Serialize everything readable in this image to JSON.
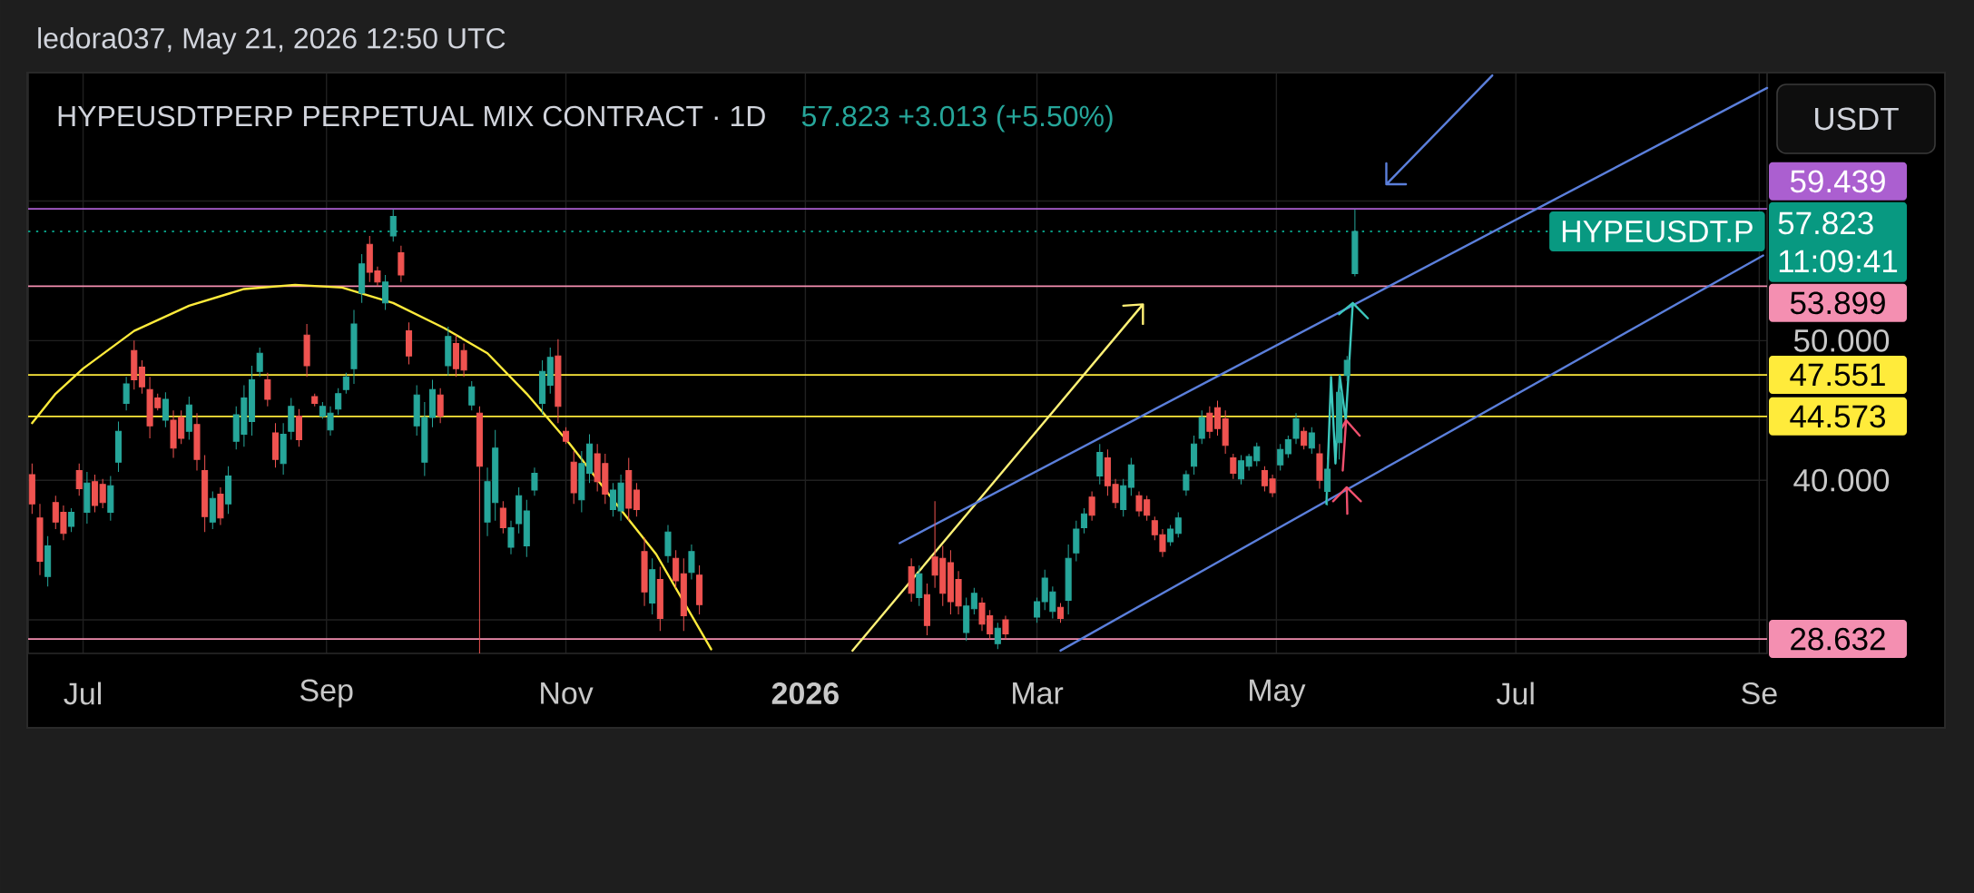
{
  "chart_data": {
    "type": "candlestick",
    "title": "HYPEUSDTPERP PERPETUAL MIX CONTRACT · 1D",
    "subtitle": "57.823 +3.013 (+5.50%)",
    "ylabel": "USDT",
    "annotations": [
      "ledora037, May 21, 2026 12:50 UTC",
      "HYPEUSDT.P",
      "11:09:41"
    ],
    "x": [
      "2025-06-18",
      "2025-06-20",
      "2025-06-22",
      "2025-06-24",
      "2025-06-26",
      "2025-06-28",
      "2025-06-30",
      "2025-07-02",
      "2025-07-04",
      "2025-07-06",
      "2025-07-08",
      "2025-07-10",
      "2025-07-12",
      "2025-07-14",
      "2025-07-16",
      "2025-07-18",
      "2025-07-20",
      "2025-07-22",
      "2025-07-24",
      "2025-07-26",
      "2025-07-28",
      "2025-07-30",
      "2025-08-01",
      "2025-08-03",
      "2025-08-05",
      "2025-08-07",
      "2025-08-09",
      "2025-08-11",
      "2025-08-13",
      "2025-08-15",
      "2025-08-17",
      "2025-08-19",
      "2025-08-21",
      "2025-08-23",
      "2025-08-25",
      "2025-08-27",
      "2025-08-29",
      "2025-08-31",
      "2025-09-02",
      "2025-09-04",
      "2025-09-06",
      "2025-09-08",
      "2025-09-10",
      "2025-09-12",
      "2025-09-14",
      "2025-09-16",
      "2025-09-18",
      "2025-09-20",
      "2025-09-22",
      "2025-09-24",
      "2025-09-26",
      "2025-09-28",
      "2025-09-30",
      "2025-10-02",
      "2025-10-04",
      "2025-10-06",
      "2025-10-08",
      "2025-10-10",
      "2025-10-12",
      "2025-10-14",
      "2025-10-16",
      "2025-10-18",
      "2025-10-20",
      "2025-10-22",
      "2025-10-24",
      "2025-10-26",
      "2025-10-28",
      "2025-10-30",
      "2025-11-01",
      "2025-11-03",
      "2025-11-05",
      "2025-11-07",
      "2025-11-09",
      "2025-11-11",
      "2025-11-13",
      "2025-11-15",
      "2025-11-17",
      "2025-11-19",
      "2025-11-21",
      "2025-11-23",
      "2025-11-25",
      "2025-11-27",
      "2025-11-29",
      "2025-12-01",
      "2025-12-03",
      "2025-12-05",
      "2026-01-28",
      "2026-01-30",
      "2026-02-01",
      "2026-02-03",
      "2026-02-05",
      "2026-02-07",
      "2026-02-09",
      "2026-02-11",
      "2026-02-13",
      "2026-02-15",
      "2026-02-17",
      "2026-02-19",
      "2026-02-21",
      "2026-03-01",
      "2026-03-03",
      "2026-03-05",
      "2026-03-07",
      "2026-03-09",
      "2026-03-11",
      "2026-03-13",
      "2026-03-15",
      "2026-03-17",
      "2026-03-19",
      "2026-03-21",
      "2026-03-23",
      "2026-03-25",
      "2026-03-27",
      "2026-03-29",
      "2026-03-31",
      "2026-04-02",
      "2026-04-04",
      "2026-04-06",
      "2026-04-08",
      "2026-04-10",
      "2026-04-12",
      "2026-04-14",
      "2026-04-16",
      "2026-04-18",
      "2026-04-20",
      "2026-04-22",
      "2026-04-24",
      "2026-04-26",
      "2026-04-28",
      "2026-04-30",
      "2026-05-02",
      "2026-05-04",
      "2026-05-06",
      "2026-05-08",
      "2026-05-10",
      "2026-05-12",
      "2026-05-14",
      "2026-05-17",
      "2026-05-19",
      "2026-05-21"
    ],
    "ohlc": [
      [
        40.4,
        41.2,
        37.6,
        38.3
      ],
      [
        37.3,
        38.3,
        33.2,
        34.2
      ],
      [
        33.1,
        36.0,
        32.4,
        35.3
      ],
      [
        38.4,
        38.9,
        36.5,
        37.0
      ],
      [
        37.7,
        38.2,
        35.7,
        36.2
      ],
      [
        36.7,
        38.0,
        36.3,
        37.7
      ],
      [
        40.7,
        41.2,
        38.9,
        39.4
      ],
      [
        37.7,
        40.6,
        36.9,
        39.8
      ],
      [
        39.9,
        40.4,
        37.7,
        38.2
      ],
      [
        39.7,
        40.1,
        38.0,
        38.4
      ],
      [
        37.7,
        40.3,
        37.1,
        39.6
      ],
      [
        41.3,
        44.2,
        40.6,
        43.5
      ],
      [
        45.5,
        47.4,
        45.0,
        46.9
      ],
      [
        49.3,
        50.0,
        46.5,
        47.2
      ],
      [
        48.1,
        48.6,
        46.2,
        46.7
      ],
      [
        46.5,
        47.4,
        43.0,
        43.9
      ],
      [
        45.9,
        46.2,
        45.0,
        45.2
      ],
      [
        44.3,
        46.3,
        43.8,
        45.8
      ],
      [
        44.3,
        45.0,
        41.6,
        42.3
      ],
      [
        44.5,
        45.0,
        42.6,
        43.0
      ],
      [
        43.5,
        46.0,
        42.9,
        45.4
      ],
      [
        44.0,
        44.8,
        40.7,
        41.5
      ],
      [
        40.7,
        41.8,
        36.3,
        37.4
      ],
      [
        37.0,
        39.2,
        36.5,
        38.7
      ],
      [
        39.0,
        39.5,
        36.8,
        37.3
      ],
      [
        38.3,
        41.0,
        37.6,
        40.3
      ],
      [
        42.8,
        45.3,
        42.2,
        44.7
      ],
      [
        43.3,
        46.8,
        42.4,
        45.9
      ],
      [
        44.2,
        48.2,
        43.2,
        47.2
      ],
      [
        47.8,
        49.5,
        47.4,
        49.1
      ],
      [
        47.2,
        47.7,
        45.3,
        45.8
      ],
      [
        43.4,
        44.1,
        40.9,
        41.5
      ],
      [
        41.2,
        44.1,
        40.4,
        43.3
      ],
      [
        43.5,
        45.9,
        42.9,
        45.3
      ],
      [
        44.6,
        45.1,
        42.4,
        42.9
      ],
      [
        50.4,
        51.2,
        47.4,
        48.2
      ],
      [
        46.0,
        46.2,
        45.3,
        45.5
      ],
      [
        44.6,
        45.6,
        44.4,
        45.3
      ],
      [
        43.6,
        45.3,
        43.2,
        44.8
      ],
      [
        45.1,
        46.6,
        44.7,
        46.2
      ],
      [
        46.5,
        47.7,
        46.2,
        47.4
      ],
      [
        48.0,
        52.2,
        46.9,
        51.2
      ],
      [
        53.4,
        56.2,
        52.7,
        55.5
      ],
      [
        56.9,
        57.5,
        54.2,
        54.9
      ],
      [
        55.0,
        55.3,
        53.9,
        54.2
      ],
      [
        52.7,
        54.7,
        52.2,
        54.2
      ],
      [
        57.5,
        59.4,
        57.1,
        58.9
      ],
      [
        56.3,
        56.8,
        54.2,
        54.7
      ],
      [
        50.7,
        51.3,
        48.3,
        48.9
      ],
      [
        43.9,
        46.8,
        43.2,
        46.1
      ],
      [
        41.3,
        45.6,
        40.3,
        44.5
      ],
      [
        44.5,
        47.2,
        43.8,
        46.5
      ],
      [
        46.1,
        46.6,
        44.1,
        44.6
      ],
      [
        48.2,
        51.0,
        47.5,
        50.3
      ],
      [
        49.8,
        50.4,
        47.4,
        48.0
      ],
      [
        49.3,
        49.8,
        47.4,
        47.9
      ],
      [
        45.4,
        47.1,
        45.0,
        46.7
      ],
      [
        44.8,
        45.3,
        27.6,
        41.0
      ],
      [
        37.0,
        40.9,
        36.0,
        39.9
      ],
      [
        38.4,
        43.6,
        37.1,
        42.3
      ],
      [
        38.0,
        38.5,
        36.2,
        36.6
      ],
      [
        35.2,
        37.1,
        34.7,
        36.6
      ],
      [
        36.9,
        39.5,
        36.2,
        38.9
      ],
      [
        35.3,
        38.6,
        34.5,
        37.8
      ],
      [
        39.3,
        40.9,
        38.9,
        40.5
      ],
      [
        45.5,
        48.6,
        44.7,
        47.8
      ],
      [
        46.8,
        49.5,
        46.2,
        48.8
      ],
      [
        48.9,
        50.1,
        44.1,
        45.3
      ],
      [
        43.5,
        43.8,
        42.6,
        42.8
      ],
      [
        41.3,
        42.1,
        38.3,
        39.1
      ],
      [
        38.6,
        42.1,
        37.7,
        41.2
      ],
      [
        40.5,
        43.3,
        39.8,
        42.6
      ],
      [
        41.9,
        42.6,
        39.2,
        39.9
      ],
      [
        41.2,
        41.9,
        38.3,
        39.0
      ],
      [
        37.9,
        39.8,
        37.4,
        39.3
      ],
      [
        37.8,
        40.4,
        37.1,
        39.8
      ],
      [
        40.7,
        41.6,
        37.1,
        38.0
      ],
      [
        39.3,
        39.8,
        37.4,
        37.9
      ],
      [
        34.9,
        35.9,
        31.0,
        32.0
      ],
      [
        31.2,
        34.4,
        30.4,
        33.6
      ],
      [
        32.9,
        33.8,
        29.2,
        30.1
      ],
      [
        34.6,
        36.8,
        34.1,
        36.3
      ],
      [
        34.4,
        35.0,
        32.3,
        32.8
      ],
      [
        33.3,
        34.4,
        29.2,
        30.3
      ],
      [
        33.4,
        35.4,
        32.9,
        34.9
      ],
      [
        33.2,
        33.9,
        30.4,
        31.1
      ],
      [
        33.8,
        34.4,
        31.3,
        31.9
      ],
      [
        31.6,
        33.9,
        31.0,
        33.3
      ],
      [
        31.8,
        32.6,
        28.9,
        29.6
      ],
      [
        34.5,
        38.5,
        32.3,
        33.2
      ],
      [
        34.4,
        35.3,
        31.0,
        31.9
      ],
      [
        34.1,
        35.0,
        30.4,
        31.3
      ],
      [
        32.9,
        33.5,
        30.4,
        31.0
      ],
      [
        29.1,
        31.6,
        28.5,
        31.0
      ],
      [
        30.8,
        32.3,
        30.4,
        31.9
      ],
      [
        31.2,
        31.6,
        29.2,
        29.7
      ],
      [
        30.3,
        30.7,
        28.6,
        29.0
      ],
      [
        28.3,
        29.8,
        27.9,
        29.4
      ],
      [
        30.0,
        30.3,
        28.6,
        29.0
      ],
      [
        30.2,
        31.6,
        29.8,
        31.3
      ],
      [
        31.3,
        33.6,
        30.7,
        33.0
      ],
      [
        30.6,
        32.4,
        30.1,
        32.0
      ],
      [
        30.9,
        31.2,
        29.8,
        30.1
      ],
      [
        31.4,
        35.4,
        30.4,
        34.4
      ],
      [
        34.8,
        37.1,
        34.2,
        36.5
      ],
      [
        36.6,
        38.0,
        36.2,
        37.6
      ],
      [
        38.8,
        39.2,
        37.1,
        37.5
      ],
      [
        40.3,
        42.6,
        39.7,
        42.0
      ],
      [
        41.6,
        42.2,
        38.9,
        39.6
      ],
      [
        39.7,
        40.1,
        38.0,
        38.4
      ],
      [
        37.9,
        40.1,
        37.4,
        39.6
      ],
      [
        39.5,
        41.6,
        38.9,
        41.1
      ],
      [
        38.9,
        39.2,
        37.4,
        37.8
      ],
      [
        38.6,
        38.9,
        37.1,
        37.5
      ],
      [
        37.1,
        37.4,
        35.7,
        36.1
      ],
      [
        36.1,
        36.5,
        34.5,
        34.9
      ],
      [
        35.6,
        36.8,
        35.3,
        36.5
      ],
      [
        36.2,
        37.7,
        35.9,
        37.3
      ],
      [
        39.3,
        40.7,
        38.9,
        40.4
      ],
      [
        41.0,
        43.2,
        40.4,
        42.6
      ],
      [
        43.0,
        45.0,
        42.6,
        44.5
      ],
      [
        44.8,
        45.3,
        43.0,
        43.5
      ],
      [
        45.2,
        45.7,
        43.2,
        43.7
      ],
      [
        44.4,
        45.0,
        41.9,
        42.5
      ],
      [
        41.6,
        41.9,
        40.1,
        40.5
      ],
      [
        40.1,
        41.8,
        39.7,
        41.4
      ],
      [
        41.0,
        41.9,
        40.7,
        41.7
      ],
      [
        41.4,
        42.7,
        41.0,
        42.4
      ],
      [
        40.7,
        41.0,
        39.2,
        39.6
      ],
      [
        40.1,
        40.4,
        38.8,
        39.1
      ],
      [
        41.1,
        42.6,
        40.7,
        42.2
      ],
      [
        41.9,
        43.2,
        41.6,
        42.9
      ],
      [
        43.0,
        44.8,
        42.6,
        44.4
      ],
      [
        43.5,
        43.8,
        42.2,
        42.5
      ],
      [
        42.3,
        43.8,
        41.9,
        43.4
      ],
      [
        41.9,
        42.6,
        39.4,
        40.0
      ],
      [
        39.2,
        41.5,
        38.2,
        40.8
      ],
      [
        42.7,
        47.5,
        41.5,
        46.3
      ],
      [
        47.5,
        48.9,
        47.1,
        48.6
      ],
      [
        54.8,
        59.4,
        54.6,
        57.823
      ]
    ],
    "colors": [
      "#ef5350",
      "#ef5350",
      "#26a69a",
      "#ef5350",
      "#ef5350",
      "#26a69a",
      "#ef5350",
      "#26a69a",
      "#ef5350",
      "#ef5350",
      "#26a69a",
      "#26a69a",
      "#26a69a",
      "#ef5350",
      "#ef5350",
      "#ef5350",
      "#ef5350",
      "#26a69a",
      "#ef5350",
      "#ef5350",
      "#26a69a",
      "#ef5350",
      "#ef5350",
      "#26a69a",
      "#ef5350",
      "#26a69a",
      "#26a69a",
      "#26a69a",
      "#26a69a",
      "#26a69a",
      "#ef5350",
      "#ef5350",
      "#26a69a",
      "#26a69a",
      "#ef5350",
      "#ef5350",
      "#ef5350",
      "#26a69a",
      "#26a69a",
      "#26a69a",
      "#26a69a",
      "#26a69a",
      "#26a69a",
      "#ef5350",
      "#ef5350",
      "#26a69a",
      "#26a69a",
      "#ef5350",
      "#ef5350",
      "#26a69a",
      "#26a69a",
      "#26a69a",
      "#ef5350",
      "#26a69a",
      "#ef5350",
      "#ef5350",
      "#26a69a",
      "#ef5350",
      "#26a69a",
      "#26a69a",
      "#ef5350",
      "#26a69a",
      "#26a69a",
      "#26a69a",
      "#26a69a",
      "#26a69a",
      "#26a69a",
      "#ef5350",
      "#ef5350",
      "#ef5350",
      "#26a69a",
      "#26a69a",
      "#ef5350",
      "#ef5350",
      "#26a69a",
      "#26a69a",
      "#ef5350",
      "#ef5350",
      "#ef5350",
      "#26a69a",
      "#ef5350",
      "#26a69a",
      "#ef5350",
      "#ef5350",
      "#26a69a",
      "#ef5350",
      "#ef5350",
      "#26a69a",
      "#ef5350",
      "#ef5350",
      "#ef5350",
      "#ef5350",
      "#ef5350",
      "#26a69a",
      "#26a69a",
      "#ef5350",
      "#ef5350",
      "#26a69a",
      "#ef5350",
      "#26a69a",
      "#26a69a",
      "#26a69a",
      "#ef5350",
      "#26a69a",
      "#26a69a",
      "#26a69a",
      "#ef5350",
      "#26a69a",
      "#ef5350",
      "#ef5350",
      "#26a69a",
      "#26a69a",
      "#ef5350",
      "#ef5350",
      "#ef5350",
      "#ef5350",
      "#26a69a",
      "#26a69a",
      "#26a69a",
      "#26a69a",
      "#26a69a",
      "#ef5350",
      "#ef5350",
      "#ef5350",
      "#ef5350",
      "#26a69a",
      "#26a69a",
      "#26a69a",
      "#ef5350",
      "#ef5350",
      "#26a69a",
      "#26a69a",
      "#26a69a",
      "#ef5350",
      "#26a69a",
      "#ef5350",
      "#26a69a",
      "#26a69a",
      "#26a69a",
      "#26a69a"
    ],
    "xlim": [
      "2025-06-17",
      "2026-09-03"
    ],
    "xticks": [
      {
        "value": "2025-07-01",
        "label": "Jul"
      },
      {
        "value": "2025-09-01",
        "label": "Sep"
      },
      {
        "value": "2025-11-01",
        "label": "Nov"
      },
      {
        "value": "2026-01-01",
        "label": "2026"
      },
      {
        "value": "2026-03-01",
        "label": "Mar"
      },
      {
        "value": "2026-05-01",
        "label": "May"
      },
      {
        "value": "2026-07-01",
        "label": "Jul"
      },
      {
        "value": "2026-09-01",
        "label": "Se"
      }
    ],
    "ylim": [
      27.6,
      69.2
    ],
    "yticks": [
      {
        "value": 30,
        "label": null
      },
      {
        "value": 40,
        "label": "40.000"
      },
      {
        "value": 50,
        "label": "50.000"
      },
      {
        "value": 60,
        "label": null
      }
    ],
    "grid": true,
    "ref_lines": [
      {
        "axis": "y",
        "value": 59.439,
        "label": "59.439",
        "color": "#ab5fd0"
      },
      {
        "axis": "y",
        "value": 57.823,
        "label": "57.823",
        "color": "#089981",
        "line_style": "dotted"
      },
      {
        "axis": "y",
        "value": 53.899,
        "label": "53.899",
        "color": "#f48fb1"
      },
      {
        "axis": "y",
        "value": 47.551,
        "label": "47.551",
        "color": "#ffeb3b"
      },
      {
        "axis": "y",
        "value": 44.573,
        "label": "44.573",
        "color": "#ffeb3b"
      },
      {
        "axis": "y",
        "value": 28.632,
        "label": "28.632",
        "color": "#f48fb1"
      }
    ],
    "series": [
      {
        "type": "line",
        "color": "#ffeb3b",
        "x": [
          "2025-06-18",
          "2025-06-24",
          "2025-07-01",
          "2025-07-14",
          "2025-07-28",
          "2025-08-11",
          "2025-08-24",
          "2025-09-05",
          "2025-09-18",
          "2025-10-01",
          "2025-10-12",
          "2025-10-22",
          "2025-11-02",
          "2025-11-13",
          "2025-11-24",
          "2025-12-08"
        ],
        "values": [
          44.1,
          46.2,
          48.0,
          50.7,
          52.5,
          53.7,
          54.0,
          53.8,
          52.7,
          50.9,
          49.1,
          46.2,
          42.6,
          38.6,
          34.7,
          27.9
        ]
      },
      {
        "type": "line",
        "color": "#fff176",
        "x": [
          "2026-01-13",
          "2026-03-28",
          "2026-03-23",
          "2026-03-28",
          "2026-03-28"
        ],
        "values": [
          27.8,
          52.6,
          52.5,
          52.6,
          51.2
        ]
      },
      {
        "type": "line",
        "color": "#5b7fdb",
        "x": [
          "2026-01-25",
          "2026-09-03"
        ],
        "values": [
          35.5,
          68.1
        ]
      },
      {
        "type": "line",
        "color": "#5b7fdb",
        "x": [
          "2026-03-07",
          "2026-09-02"
        ],
        "values": [
          27.8,
          56.1
        ]
      },
      {
        "type": "line",
        "color": "#5b7fdb",
        "x": [
          "2026-06-25",
          "2026-05-29",
          "2026-05-29",
          "2026-05-29",
          "2026-06-03"
        ],
        "values": [
          69.0,
          61.2,
          62.7,
          61.2,
          61.2
        ]
      },
      {
        "type": "line",
        "color": "#3cc8bd",
        "x": [
          "2026-05-13T18:00",
          "2026-05-14T22:00",
          "2026-05-16T01:00",
          "2026-05-17T03:00",
          "2026-05-18T16:00",
          "2026-05-20T11:00",
          "2026-05-16T23:30",
          "2026-05-20T11:00",
          "2026-05-24T07:00"
        ],
        "values": [
          38.3,
          47.4,
          41.2,
          47.5,
          44.3,
          52.7,
          51.9,
          52.7,
          51.6
        ]
      },
      {
        "type": "line",
        "color": "#f0506e",
        "x": [
          "2026-05-17T21:30",
          "2026-05-18T18:00",
          "2026-05-17T08:30",
          "2026-05-18T18:00",
          "2026-05-22T05:00"
        ],
        "values": [
          40.7,
          44.3,
          43.6,
          44.3,
          43.2
        ]
      },
      {
        "type": "line",
        "color": "#f0506e",
        "x": [
          "2026-05-19T01:30",
          "2026-05-18T22:00",
          "2026-05-15T10:30",
          "2026-05-18T22:00",
          "2026-05-22T12:30"
        ],
        "values": [
          37.6,
          39.5,
          38.5,
          39.5,
          38.5
        ]
      }
    ]
  }
}
